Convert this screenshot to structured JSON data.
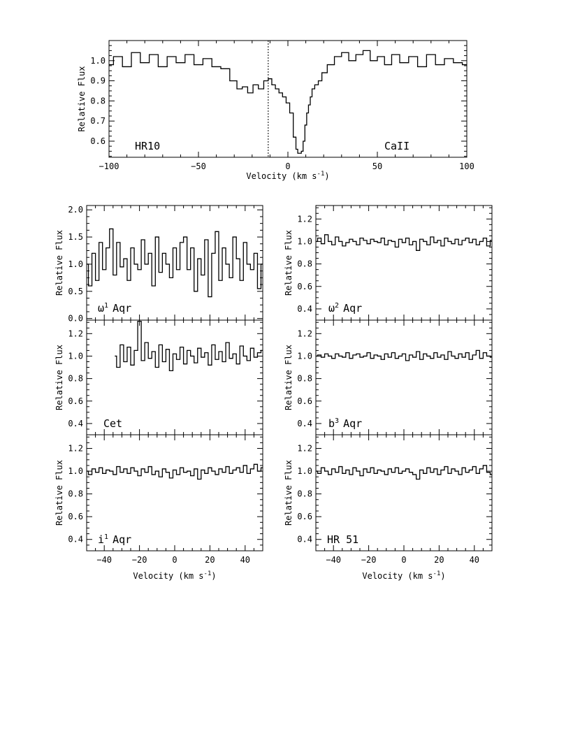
{
  "chart_data": [
    {
      "id": "hr10",
      "type": "line",
      "star_label": "HR10",
      "line_label": "CaII",
      "xlabel": "Velocity (km s^-1)",
      "ylabel": "Relative Flux",
      "xlim": [
        -100,
        100
      ],
      "ylim": [
        0.52,
        1.1
      ],
      "xticks": [
        -100,
        -50,
        0,
        50,
        100
      ],
      "yticks": [
        0.6,
        0.7,
        0.8,
        0.9,
        1.0
      ],
      "ytick_labels": [
        "0.6",
        "0.7",
        "0.8",
        "0.9",
        "1.0"
      ],
      "vline": -11,
      "x": [
        -100,
        -95,
        -90,
        -85,
        -80,
        -75,
        -70,
        -65,
        -60,
        -55,
        -50,
        -45,
        -40,
        -35,
        -30,
        -27,
        -24,
        -21,
        -18,
        -15,
        -12,
        -10,
        -8,
        -6,
        -4,
        -2,
        0,
        2,
        4,
        5,
        6,
        7,
        8,
        9,
        10,
        11,
        12,
        13,
        14,
        16,
        18,
        20,
        24,
        28,
        32,
        36,
        40,
        44,
        48,
        52,
        56,
        60,
        65,
        70,
        75,
        80,
        85,
        90,
        95,
        100
      ],
      "y": [
        0.98,
        1.02,
        0.97,
        1.04,
        0.99,
        1.03,
        0.97,
        1.02,
        0.99,
        1.03,
        0.98,
        1.01,
        0.97,
        0.96,
        0.9,
        0.86,
        0.87,
        0.84,
        0.88,
        0.86,
        0.9,
        0.91,
        0.88,
        0.86,
        0.84,
        0.82,
        0.79,
        0.74,
        0.62,
        0.56,
        0.54,
        0.54,
        0.55,
        0.6,
        0.68,
        0.74,
        0.78,
        0.82,
        0.86,
        0.88,
        0.9,
        0.94,
        0.98,
        1.02,
        1.04,
        1.0,
        1.03,
        1.05,
        1.0,
        1.02,
        0.98,
        1.03,
        0.99,
        1.02,
        0.97,
        1.03,
        0.98,
        1.01,
        0.99,
        0.98
      ]
    },
    {
      "id": "omega1-aqr",
      "type": "line",
      "star_label_main": "ω",
      "star_label_sup": "1",
      "star_label_rest": "Aqr",
      "xlabel": "",
      "ylabel": "Relative Flux",
      "xlim": [
        -50,
        50
      ],
      "ylim": [
        -0.03,
        2.08
      ],
      "xticks": [
        -40,
        -20,
        0,
        20,
        40
      ],
      "show_xtick_labels": false,
      "yticks": [
        0.0,
        0.5,
        1.0,
        1.5,
        2.0
      ],
      "ytick_labels": [
        "0.0",
        "0.5",
        "1.0",
        "1.5",
        "2.0"
      ],
      "x": [
        -50,
        -48,
        -46,
        -44,
        -42,
        -40,
        -38,
        -36,
        -34,
        -32,
        -30,
        -28,
        -26,
        -24,
        -22,
        -20,
        -18,
        -16,
        -14,
        -12,
        -10,
        -8,
        -6,
        -4,
        -2,
        0,
        2,
        4,
        6,
        8,
        10,
        12,
        14,
        16,
        18,
        20,
        22,
        24,
        26,
        28,
        30,
        32,
        34,
        36,
        38,
        40,
        42,
        44,
        46,
        48,
        50
      ],
      "y": [
        1.0,
        0.6,
        1.2,
        0.7,
        1.4,
        0.9,
        1.3,
        1.65,
        0.8,
        1.4,
        0.95,
        1.1,
        0.7,
        1.3,
        1.0,
        0.9,
        1.45,
        1.0,
        1.2,
        0.6,
        1.5,
        0.85,
        1.2,
        1.0,
        0.75,
        1.3,
        0.9,
        1.4,
        1.5,
        0.9,
        1.3,
        0.5,
        1.1,
        0.8,
        1.45,
        0.4,
        1.2,
        1.6,
        0.7,
        1.3,
        1.0,
        0.75,
        1.5,
        1.1,
        0.7,
        1.4,
        1.0,
        0.9,
        1.2,
        0.55,
        1.0
      ]
    },
    {
      "id": "omega2-aqr",
      "type": "line",
      "star_label_main": "ω",
      "star_label_sup": "2",
      "star_label_rest": "Aqr",
      "xlabel": "",
      "ylabel": "Relative Flux",
      "xlim": [
        -50,
        50
      ],
      "ylim": [
        0.3,
        1.32
      ],
      "xticks": [
        -40,
        -20,
        0,
        20,
        40
      ],
      "show_xtick_labels": false,
      "yticks": [
        0.4,
        0.6,
        0.8,
        1.0,
        1.2
      ],
      "ytick_labels": [
        "0.4",
        "0.6",
        "0.8",
        "1.0",
        "1.2"
      ],
      "x": [
        -50,
        -48,
        -46,
        -44,
        -42,
        -40,
        -38,
        -36,
        -34,
        -32,
        -30,
        -28,
        -26,
        -24,
        -22,
        -20,
        -18,
        -16,
        -14,
        -12,
        -10,
        -8,
        -6,
        -4,
        -2,
        0,
        2,
        4,
        6,
        8,
        10,
        12,
        14,
        16,
        18,
        20,
        22,
        24,
        26,
        28,
        30,
        32,
        34,
        36,
        38,
        40,
        42,
        44,
        46,
        48,
        50
      ],
      "y": [
        1.0,
        1.03,
        0.98,
        1.06,
        1.0,
        0.97,
        1.04,
        1.0,
        0.96,
        0.99,
        1.02,
        1.0,
        0.97,
        1.03,
        1.01,
        0.98,
        1.02,
        1.0,
        0.99,
        1.03,
        0.97,
        1.01,
        1.0,
        0.95,
        1.02,
        0.99,
        1.03,
        0.97,
        1.0,
        0.92,
        1.02,
        1.0,
        0.97,
        1.04,
        0.99,
        1.01,
        0.96,
        1.03,
        1.0,
        0.98,
        1.02,
        0.97,
        1.01,
        1.03,
        0.99,
        1.02,
        0.97,
        1.0,
        1.03,
        0.96,
        1.01
      ]
    },
    {
      "id": "cet",
      "type": "line",
      "star_label_main": "Cet",
      "star_label_sup": "",
      "star_label_rest": "",
      "xlabel": "",
      "ylabel": "Relative Flux",
      "xlim": [
        -50,
        50
      ],
      "ylim": [
        0.3,
        1.32
      ],
      "xticks": [
        -40,
        -20,
        0,
        20,
        40
      ],
      "show_xtick_labels": false,
      "yticks": [
        0.4,
        0.6,
        0.8,
        1.0,
        1.2
      ],
      "ytick_labels": [
        "0.4",
        "0.6",
        "0.8",
        "1.0",
        "1.2"
      ],
      "x": [
        -34,
        -32,
        -30,
        -28,
        -26,
        -24,
        -22,
        -20,
        -18,
        -16,
        -14,
        -12,
        -10,
        -8,
        -6,
        -4,
        -2,
        0,
        2,
        4,
        6,
        8,
        10,
        12,
        14,
        16,
        18,
        20,
        22,
        24,
        26,
        28,
        30,
        32,
        34,
        36,
        38,
        40,
        42,
        44,
        46,
        48,
        50
      ],
      "y": [
        1.0,
        0.9,
        1.1,
        0.95,
        1.08,
        0.92,
        1.05,
        1.31,
        0.96,
        1.12,
        0.98,
        1.04,
        0.9,
        1.1,
        0.95,
        1.06,
        0.87,
        1.02,
        0.97,
        1.08,
        0.93,
        1.05,
        1.0,
        0.94,
        1.07,
        0.99,
        1.03,
        0.92,
        1.1,
        0.97,
        1.04,
        0.95,
        1.12,
        0.98,
        1.02,
        0.93,
        1.09,
        1.0,
        0.96,
        1.07,
        0.99,
        1.03,
        1.05
      ]
    },
    {
      "id": "b3-aqr",
      "type": "line",
      "star_label_main": "b",
      "star_label_sup": "3",
      "star_label_rest": "Aqr",
      "xlabel": "",
      "ylabel": "Relative Flux",
      "xlim": [
        -50,
        50
      ],
      "ylim": [
        0.3,
        1.32
      ],
      "xticks": [
        -40,
        -20,
        0,
        20,
        40
      ],
      "show_xtick_labels": false,
      "yticks": [
        0.4,
        0.6,
        0.8,
        1.0,
        1.2
      ],
      "ytick_labels": [
        "0.4",
        "0.6",
        "0.8",
        "1.0",
        "1.2"
      ],
      "x": [
        -50,
        -48,
        -46,
        -44,
        -42,
        -40,
        -38,
        -36,
        -34,
        -32,
        -30,
        -28,
        -26,
        -24,
        -22,
        -20,
        -18,
        -16,
        -14,
        -12,
        -10,
        -8,
        -6,
        -4,
        -2,
        0,
        2,
        4,
        6,
        8,
        10,
        12,
        14,
        16,
        18,
        20,
        22,
        24,
        26,
        28,
        30,
        32,
        34,
        36,
        38,
        40,
        42,
        44,
        46,
        48,
        50
      ],
      "y": [
        1.0,
        1.01,
        0.99,
        1.02,
        1.0,
        0.98,
        1.02,
        1.0,
        0.99,
        1.03,
        0.98,
        1.01,
        1.02,
        0.99,
        1.0,
        1.03,
        0.98,
        1.01,
        1.0,
        0.97,
        1.02,
        0.99,
        1.03,
        0.98,
        1.0,
        1.02,
        0.96,
        1.01,
        0.99,
        1.04,
        0.97,
        1.02,
        1.0,
        0.98,
        1.03,
        0.99,
        1.01,
        0.97,
        1.04,
        1.0,
        0.98,
        1.02,
        0.99,
        1.03,
        0.97,
        1.01,
        1.05,
        0.98,
        1.03,
        1.0,
        0.99
      ]
    },
    {
      "id": "i1-aqr",
      "type": "line",
      "star_label_main": "i",
      "star_label_sup": "1",
      "star_label_rest": "Aqr",
      "xlabel": "Velocity (km s^-1)",
      "ylabel": "Relative Flux",
      "xlim": [
        -50,
        50
      ],
      "ylim": [
        0.3,
        1.32
      ],
      "xticks": [
        -40,
        -20,
        0,
        20,
        40
      ],
      "show_xtick_labels": true,
      "yticks": [
        0.4,
        0.6,
        0.8,
        1.0,
        1.2
      ],
      "ytick_labels": [
        "0.4",
        "0.6",
        "0.8",
        "1.0",
        "1.2"
      ],
      "x": [
        -50,
        -48,
        -46,
        -44,
        -42,
        -40,
        -38,
        -36,
        -34,
        -32,
        -30,
        -28,
        -26,
        -24,
        -22,
        -20,
        -18,
        -16,
        -14,
        -12,
        -10,
        -8,
        -6,
        -4,
        -2,
        0,
        2,
        4,
        6,
        8,
        10,
        12,
        14,
        16,
        18,
        20,
        22,
        24,
        26,
        28,
        30,
        32,
        34,
        36,
        38,
        40,
        42,
        44,
        46,
        48,
        50
      ],
      "y": [
        1.0,
        0.97,
        1.02,
        0.99,
        1.03,
        0.98,
        1.01,
        1.0,
        0.97,
        1.04,
        0.99,
        1.02,
        0.98,
        1.03,
        1.0,
        0.96,
        1.02,
        0.99,
        1.04,
        0.97,
        1.0,
        0.95,
        1.02,
        0.99,
        0.94,
        1.01,
        0.97,
        1.03,
        0.99,
        1.0,
        0.96,
        1.02,
        0.93,
        1.01,
        0.98,
        1.03,
        1.0,
        0.97,
        1.02,
        0.99,
        1.04,
        0.98,
        1.01,
        1.03,
        0.99,
        1.05,
        0.98,
        1.02,
        1.06,
        1.0,
        1.03
      ]
    },
    {
      "id": "hr51",
      "type": "line",
      "star_label_main": "HR 51",
      "star_label_sup": "",
      "star_label_rest": "",
      "xlabel": "Velocity (km s^-1)",
      "ylabel": "Relative Flux",
      "xlim": [
        -50,
        50
      ],
      "ylim": [
        0.3,
        1.32
      ],
      "xticks": [
        -40,
        -20,
        0,
        20,
        40
      ],
      "show_xtick_labels": true,
      "yticks": [
        0.4,
        0.6,
        0.8,
        1.0,
        1.2
      ],
      "ytick_labels": [
        "0.4",
        "0.6",
        "0.8",
        "1.0",
        "1.2"
      ],
      "x": [
        -50,
        -48,
        -46,
        -44,
        -42,
        -40,
        -38,
        -36,
        -34,
        -32,
        -30,
        -28,
        -26,
        -24,
        -22,
        -20,
        -18,
        -16,
        -14,
        -12,
        -10,
        -8,
        -6,
        -4,
        -2,
        0,
        2,
        4,
        6,
        8,
        10,
        12,
        14,
        16,
        18,
        20,
        22,
        24,
        26,
        28,
        30,
        32,
        34,
        36,
        38,
        40,
        42,
        44,
        46,
        48,
        50
      ],
      "y": [
        1.0,
        0.98,
        1.03,
        1.0,
        0.97,
        1.02,
        0.99,
        1.04,
        0.98,
        1.01,
        0.97,
        1.03,
        1.0,
        0.96,
        1.02,
        0.99,
        1.03,
        0.98,
        1.01,
        1.0,
        0.97,
        1.02,
        0.99,
        1.03,
        0.98,
        1.0,
        1.02,
        0.99,
        0.97,
        0.93,
        1.01,
        0.98,
        1.03,
        0.99,
        1.02,
        0.97,
        1.01,
        1.04,
        0.98,
        1.02,
        1.0,
        0.97,
        1.03,
        0.99,
        1.01,
        1.04,
        0.98,
        1.02,
        1.05,
        0.99,
        0.97
      ]
    }
  ]
}
